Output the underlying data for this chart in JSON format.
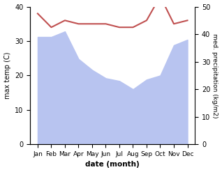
{
  "months": [
    "Jan",
    "Feb",
    "Mar",
    "Apr",
    "May",
    "Jun",
    "Jul",
    "Aug",
    "Sep",
    "Oct",
    "Nov",
    "Dec"
  ],
  "x": [
    0,
    1,
    2,
    3,
    4,
    5,
    6,
    7,
    8,
    9,
    10,
    11
  ],
  "temperature": [
    38,
    34,
    36,
    35,
    35,
    35,
    34,
    34,
    36,
    43,
    35,
    36
  ],
  "precipitation": [
    390,
    390,
    410,
    310,
    270,
    240,
    230,
    200,
    235,
    250,
    360,
    380
  ],
  "temp_color": "#c05050",
  "precip_fill_color": "#b8c4f0",
  "precip_line_color": "#b8c4f0",
  "ylabel_left": "max temp (C)",
  "ylabel_right": "med. precipitation (kg/m2)",
  "xlabel": "date (month)",
  "ylim_left": [
    0,
    40
  ],
  "ylim_right": [
    0,
    500
  ],
  "yticks_left": [
    0,
    10,
    20,
    30,
    40
  ],
  "yticks_right": [
    0,
    100,
    200,
    300,
    400,
    500
  ],
  "ytick_labels_right": [
    "0",
    "10",
    "20",
    "30",
    "40",
    "50"
  ],
  "bg_color": "#ffffff"
}
